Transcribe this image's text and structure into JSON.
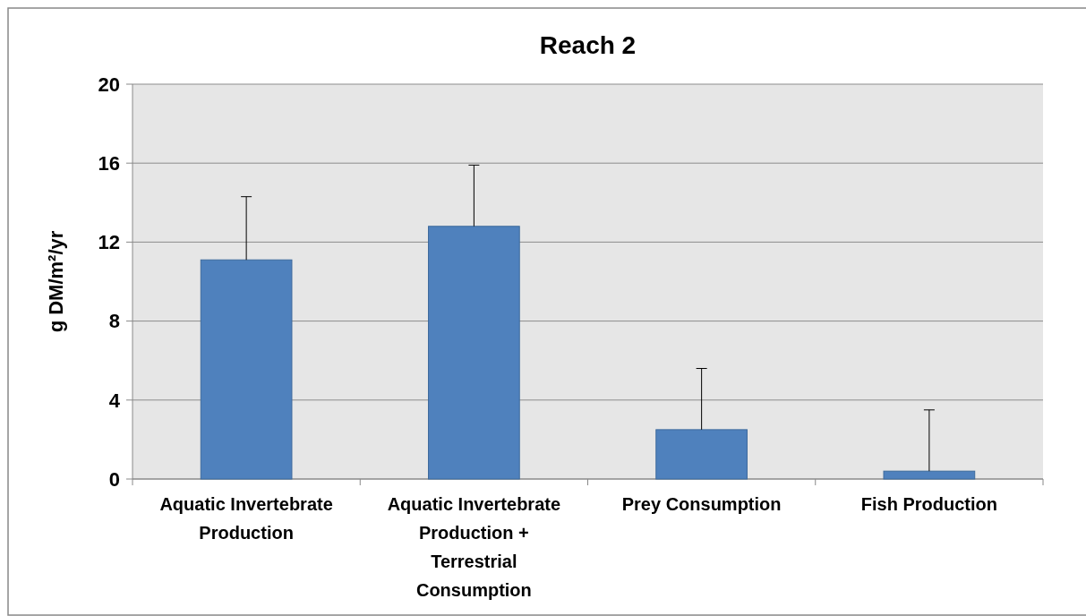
{
  "chart_data": {
    "type": "bar",
    "title": "Reach 2",
    "ylabel": "g DM/m²/yr",
    "categories": [
      "Aquatic Invertebrate Production",
      "Aquatic Invertebrate Production + Terrestrial Consumption",
      "Prey Consumption",
      "Fish Production"
    ],
    "values": [
      11.1,
      12.8,
      2.5,
      0.4
    ],
    "errors": [
      [
        11.1,
        14.3
      ],
      [
        12.8,
        15.9
      ],
      [
        2.5,
        5.6
      ],
      [
        0.4,
        3.5
      ]
    ],
    "color": "#4f81bd",
    "ylim": [
      0,
      20
    ],
    "yticks": [
      0,
      4,
      8,
      12,
      16,
      20
    ],
    "grid": "y"
  }
}
